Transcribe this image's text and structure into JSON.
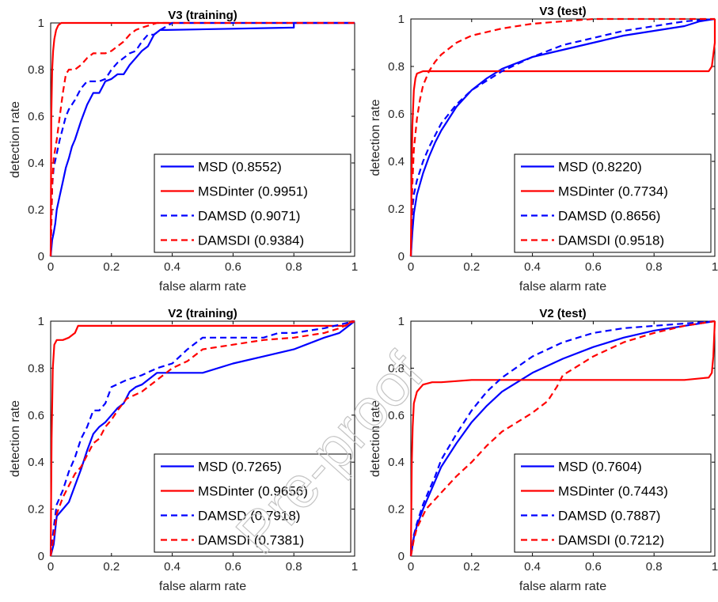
{
  "chart_data": [
    {
      "type": "line",
      "title": "V3 (training)",
      "xlabel": "false alarm rate",
      "ylabel": "detection rate",
      "xlim": [
        0,
        1
      ],
      "ylim": [
        0,
        1
      ],
      "xticks": [
        "0",
        "0.2",
        "0.4",
        "0.6",
        "0.8",
        "1"
      ],
      "yticks": [
        "0",
        "0.2",
        "0.4",
        "0.6",
        "0.8",
        "1"
      ],
      "legend_position": "bottom-right",
      "series": [
        {
          "name": "MSD (0.8552)",
          "color": "#0000ff",
          "style": "solid",
          "x": [
            0,
            0.005,
            0.01,
            0.015,
            0.02,
            0.03,
            0.04,
            0.05,
            0.06,
            0.07,
            0.08,
            0.1,
            0.12,
            0.14,
            0.16,
            0.18,
            0.2,
            0.22,
            0.24,
            0.26,
            0.28,
            0.3,
            0.32,
            0.34,
            0.36,
            0.38,
            0.8,
            0.8,
            1.0
          ],
          "y": [
            0,
            0.07,
            0.1,
            0.14,
            0.2,
            0.26,
            0.32,
            0.38,
            0.42,
            0.47,
            0.5,
            0.58,
            0.65,
            0.7,
            0.7,
            0.75,
            0.76,
            0.78,
            0.78,
            0.82,
            0.85,
            0.88,
            0.9,
            0.95,
            0.97,
            0.97,
            0.98,
            1.0,
            1.0
          ]
        },
        {
          "name": "MSDinter (0.9951)",
          "color": "#ff0000",
          "style": "solid",
          "x": [
            0,
            0.002,
            0.005,
            0.008,
            0.012,
            0.018,
            0.025,
            0.035,
            0.05,
            1.0
          ],
          "y": [
            0,
            0.6,
            0.8,
            0.88,
            0.93,
            0.97,
            0.99,
            1.0,
            1.0,
            1.0
          ]
        },
        {
          "name": "DAMSD (0.9071)",
          "color": "#0000ff",
          "style": "dashed",
          "x": [
            0,
            0.005,
            0.01,
            0.02,
            0.03,
            0.04,
            0.05,
            0.06,
            0.08,
            0.1,
            0.12,
            0.14,
            0.16,
            0.18,
            0.2,
            0.22,
            0.24,
            0.26,
            0.28,
            0.3,
            0.32,
            0.34,
            0.36,
            0.4,
            0.5,
            1.0
          ],
          "y": [
            0,
            0.3,
            0.38,
            0.44,
            0.5,
            0.55,
            0.6,
            0.63,
            0.67,
            0.72,
            0.75,
            0.75,
            0.75,
            0.76,
            0.8,
            0.83,
            0.85,
            0.87,
            0.88,
            0.92,
            0.95,
            0.95,
            0.97,
            1.0,
            1.0,
            1.0
          ]
        },
        {
          "name": "DAMSDI (0.9384)",
          "color": "#ff0000",
          "style": "dashed",
          "x": [
            0,
            0.005,
            0.01,
            0.02,
            0.03,
            0.04,
            0.05,
            0.06,
            0.08,
            0.1,
            0.12,
            0.14,
            0.16,
            0.18,
            0.2,
            0.22,
            0.24,
            0.26,
            0.28,
            0.3,
            0.35,
            0.4,
            1.0
          ],
          "y": [
            0,
            0.3,
            0.42,
            0.5,
            0.6,
            0.7,
            0.78,
            0.8,
            0.8,
            0.82,
            0.85,
            0.87,
            0.87,
            0.87,
            0.88,
            0.9,
            0.92,
            0.95,
            0.97,
            0.98,
            1.0,
            1.0,
            1.0
          ]
        }
      ]
    },
    {
      "type": "line",
      "title": "V3 (test)",
      "xlabel": "false alarm rate",
      "ylabel": "detection rate",
      "xlim": [
        0,
        1
      ],
      "ylim": [
        0,
        1
      ],
      "xticks": [
        "0",
        "0.2",
        "0.4",
        "0.6",
        "0.8",
        "1"
      ],
      "yticks": [
        "0",
        "0.2",
        "0.4",
        "0.6",
        "0.8",
        "1"
      ],
      "legend_position": "bottom-right",
      "series": [
        {
          "name": "MSD (0.8220)",
          "color": "#0000ff",
          "style": "solid",
          "x": [
            0,
            0.005,
            0.01,
            0.02,
            0.04,
            0.06,
            0.08,
            0.1,
            0.12,
            0.15,
            0.2,
            0.25,
            0.3,
            0.4,
            0.5,
            0.6,
            0.7,
            0.8,
            0.9,
            0.95,
            1.0
          ],
          "y": [
            0,
            0.1,
            0.18,
            0.26,
            0.35,
            0.42,
            0.48,
            0.53,
            0.57,
            0.63,
            0.7,
            0.75,
            0.79,
            0.84,
            0.87,
            0.9,
            0.93,
            0.95,
            0.97,
            0.99,
            1.0
          ]
        },
        {
          "name": "MSDinter (0.7734)",
          "color": "#ff0000",
          "style": "solid",
          "x": [
            0,
            0.002,
            0.005,
            0.01,
            0.015,
            0.02,
            0.04,
            0.1,
            0.5,
            0.9,
            0.98,
            0.99,
            0.995,
            1.0,
            1.0
          ],
          "y": [
            0,
            0.3,
            0.55,
            0.7,
            0.75,
            0.77,
            0.78,
            0.78,
            0.78,
            0.78,
            0.78,
            0.8,
            0.85,
            0.9,
            1.0
          ]
        },
        {
          "name": "DAMSD (0.8656)",
          "color": "#0000ff",
          "style": "dashed",
          "x": [
            0,
            0.005,
            0.01,
            0.02,
            0.04,
            0.06,
            0.08,
            0.1,
            0.15,
            0.2,
            0.3,
            0.4,
            0.5,
            0.6,
            0.7,
            0.8,
            0.9,
            1.0
          ],
          "y": [
            0,
            0.2,
            0.26,
            0.32,
            0.4,
            0.46,
            0.51,
            0.56,
            0.64,
            0.7,
            0.78,
            0.84,
            0.89,
            0.92,
            0.95,
            0.97,
            0.99,
            1.0
          ]
        },
        {
          "name": "DAMSDI (0.9518)",
          "color": "#ff0000",
          "style": "dashed",
          "x": [
            0,
            0.005,
            0.01,
            0.02,
            0.03,
            0.04,
            0.06,
            0.08,
            0.1,
            0.15,
            0.2,
            0.3,
            0.4,
            0.5,
            0.6,
            0.8,
            1.0
          ],
          "y": [
            0,
            0.3,
            0.45,
            0.58,
            0.66,
            0.72,
            0.78,
            0.82,
            0.85,
            0.9,
            0.93,
            0.96,
            0.98,
            0.99,
            1.0,
            1.0,
            1.0
          ]
        }
      ]
    },
    {
      "type": "line",
      "title": "V2 (training)",
      "xlabel": "false alarm rate",
      "ylabel": "detection rate",
      "xlim": [
        0,
        1
      ],
      "ylim": [
        0,
        1
      ],
      "xticks": [
        "0",
        "0.2",
        "0.4",
        "0.6",
        "0.8",
        "1"
      ],
      "yticks": [
        "0",
        "0.2",
        "0.4",
        "0.6",
        "0.8",
        "1"
      ],
      "legend_position": "bottom-right",
      "series": [
        {
          "name": "MSD (0.7265)",
          "color": "#0000ff",
          "style": "solid",
          "x": [
            0,
            0.01,
            0.02,
            0.04,
            0.06,
            0.08,
            0.1,
            0.12,
            0.14,
            0.16,
            0.18,
            0.2,
            0.22,
            0.24,
            0.26,
            0.28,
            0.3,
            0.35,
            0.4,
            0.5,
            0.6,
            0.7,
            0.8,
            0.9,
            0.95,
            1.0
          ],
          "y": [
            0,
            0.05,
            0.17,
            0.2,
            0.23,
            0.3,
            0.37,
            0.45,
            0.52,
            0.55,
            0.57,
            0.6,
            0.63,
            0.65,
            0.7,
            0.72,
            0.73,
            0.78,
            0.78,
            0.78,
            0.82,
            0.85,
            0.88,
            0.93,
            0.95,
            1.0
          ]
        },
        {
          "name": "MSDinter (0.9656)",
          "color": "#ff0000",
          "style": "solid",
          "x": [
            0,
            0.003,
            0.007,
            0.012,
            0.02,
            0.04,
            0.06,
            0.08,
            0.09,
            0.3,
            0.97,
            0.98,
            0.99,
            1.0
          ],
          "y": [
            0,
            0.5,
            0.8,
            0.9,
            0.92,
            0.92,
            0.93,
            0.95,
            0.98,
            0.98,
            0.98,
            0.99,
            1.0,
            1.0
          ]
        },
        {
          "name": "DAMSD (0.7918)",
          "color": "#0000ff",
          "style": "dashed",
          "x": [
            0,
            0.01,
            0.02,
            0.04,
            0.06,
            0.08,
            0.1,
            0.12,
            0.14,
            0.16,
            0.18,
            0.2,
            0.25,
            0.3,
            0.35,
            0.4,
            0.45,
            0.5,
            0.6,
            0.7,
            0.75,
            0.8,
            0.9,
            1.0
          ],
          "y": [
            0,
            0.12,
            0.22,
            0.28,
            0.36,
            0.42,
            0.5,
            0.55,
            0.62,
            0.62,
            0.65,
            0.72,
            0.75,
            0.77,
            0.8,
            0.82,
            0.88,
            0.93,
            0.93,
            0.93,
            0.95,
            0.95,
            0.97,
            1.0
          ]
        },
        {
          "name": "DAMSDI (0.7381)",
          "color": "#ff0000",
          "style": "dashed",
          "x": [
            0,
            0.01,
            0.02,
            0.04,
            0.06,
            0.08,
            0.1,
            0.12,
            0.14,
            0.16,
            0.18,
            0.2,
            0.22,
            0.25,
            0.3,
            0.35,
            0.4,
            0.45,
            0.5,
            0.6,
            0.7,
            0.8,
            0.9,
            0.95,
            1.0
          ],
          "y": [
            0,
            0.08,
            0.18,
            0.25,
            0.3,
            0.35,
            0.38,
            0.43,
            0.48,
            0.5,
            0.55,
            0.58,
            0.62,
            0.67,
            0.7,
            0.75,
            0.8,
            0.83,
            0.88,
            0.9,
            0.92,
            0.93,
            0.95,
            0.97,
            1.0
          ]
        }
      ]
    },
    {
      "type": "line",
      "title": "V2 (test)",
      "xlabel": "false alarm rate",
      "ylabel": "detection rate",
      "xlim": [
        0,
        1
      ],
      "ylim": [
        0,
        1
      ],
      "xticks": [
        "0",
        "0.2",
        "0.4",
        "0.6",
        "0.8",
        "1"
      ],
      "yticks": [
        "0",
        "0.2",
        "0.4",
        "0.6",
        "0.8",
        "1"
      ],
      "legend_position": "bottom-right",
      "series": [
        {
          "name": "MSD (0.7604)",
          "color": "#0000ff",
          "style": "solid",
          "x": [
            0,
            0.01,
            0.02,
            0.04,
            0.06,
            0.08,
            0.1,
            0.15,
            0.2,
            0.25,
            0.3,
            0.4,
            0.5,
            0.6,
            0.7,
            0.8,
            0.9,
            1.0
          ],
          "y": [
            0,
            0.08,
            0.13,
            0.2,
            0.26,
            0.32,
            0.38,
            0.48,
            0.57,
            0.64,
            0.7,
            0.78,
            0.84,
            0.89,
            0.93,
            0.96,
            0.98,
            1.0
          ]
        },
        {
          "name": "MSDinter (0.7443)",
          "color": "#ff0000",
          "style": "solid",
          "x": [
            0,
            0.003,
            0.006,
            0.01,
            0.02,
            0.04,
            0.07,
            0.1,
            0.2,
            0.5,
            0.9,
            0.98,
            0.99,
            0.995,
            1.0
          ],
          "y": [
            0,
            0.4,
            0.55,
            0.65,
            0.7,
            0.73,
            0.74,
            0.74,
            0.75,
            0.75,
            0.75,
            0.76,
            0.78,
            0.85,
            1.0
          ]
        },
        {
          "name": "DAMSD (0.7887)",
          "color": "#0000ff",
          "style": "dashed",
          "x": [
            0,
            0.01,
            0.02,
            0.04,
            0.06,
            0.08,
            0.1,
            0.15,
            0.2,
            0.25,
            0.3,
            0.4,
            0.5,
            0.6,
            0.7,
            0.8,
            0.9,
            1.0
          ],
          "y": [
            0,
            0.09,
            0.14,
            0.22,
            0.28,
            0.34,
            0.41,
            0.52,
            0.62,
            0.7,
            0.76,
            0.85,
            0.91,
            0.95,
            0.97,
            0.98,
            0.99,
            1.0
          ]
        },
        {
          "name": "DAMSDI (0.7212)",
          "color": "#ff0000",
          "style": "dashed",
          "x": [
            0,
            0.01,
            0.02,
            0.05,
            0.1,
            0.15,
            0.2,
            0.25,
            0.3,
            0.35,
            0.4,
            0.45,
            0.48,
            0.5,
            0.6,
            0.7,
            0.8,
            0.9,
            1.0
          ],
          "y": [
            0,
            0.07,
            0.12,
            0.2,
            0.27,
            0.34,
            0.4,
            0.47,
            0.53,
            0.57,
            0.61,
            0.66,
            0.72,
            0.77,
            0.85,
            0.91,
            0.95,
            0.98,
            1.0
          ]
        }
      ]
    }
  ],
  "watermark": {
    "text": "Pre-proof"
  }
}
